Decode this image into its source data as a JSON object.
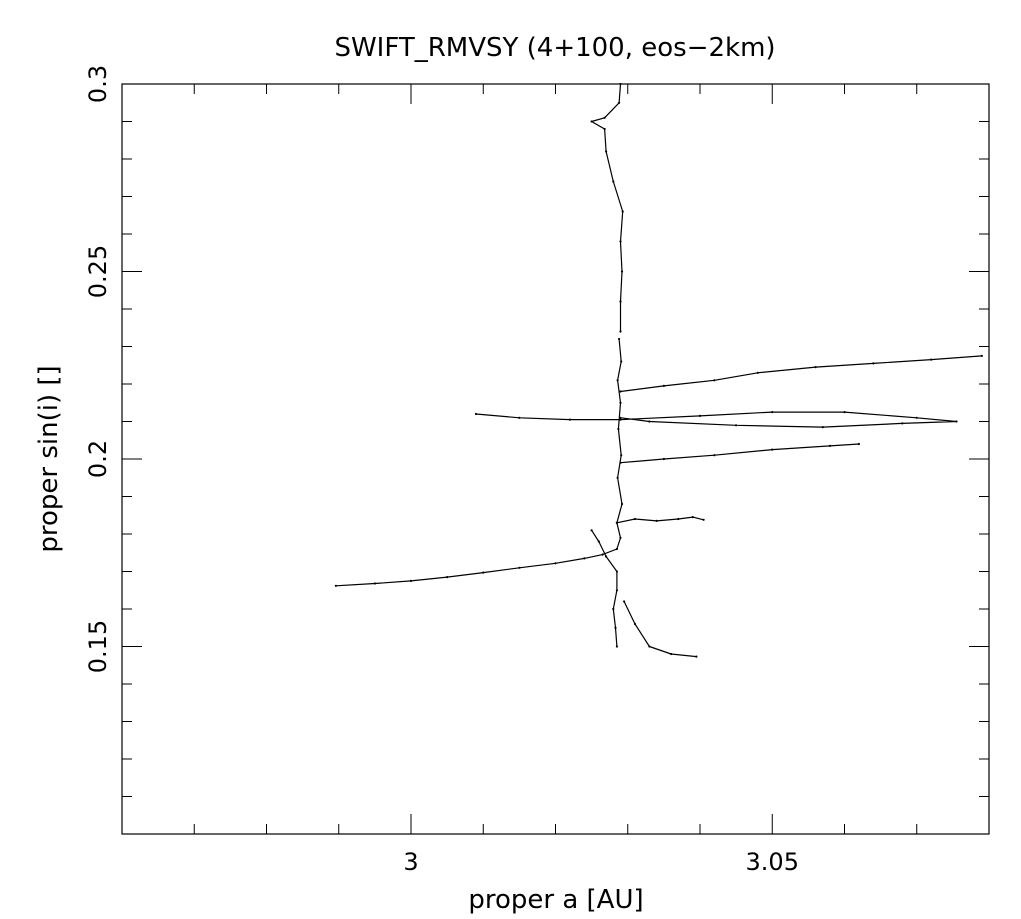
{
  "chart_data": {
    "type": "scatter",
    "title": "SWIFT_RMVSY (4+100, eos−2km)",
    "xlabel": "proper a [AU]",
    "ylabel": "proper sin(i) []",
    "xlim": [
      2.96,
      3.08
    ],
    "ylim": [
      0.1,
      0.3
    ],
    "xticks_major": [
      3,
      3.05
    ],
    "xtick_labels": [
      "3",
      "3.05"
    ],
    "yticks_major": [
      0.15,
      0.2,
      0.25,
      0.3
    ],
    "ytick_labels": [
      "0.15",
      "0.2",
      "0.25",
      "0.3"
    ],
    "grid": false,
    "line_color": "#000000",
    "series": [
      {
        "values": [
          [
            2.9896,
            0.1662
          ],
          [
            2.995,
            0.1668
          ],
          [
            3.0,
            0.1675
          ],
          [
            3.005,
            0.1685
          ],
          [
            3.01,
            0.1697
          ],
          [
            3.015,
            0.171
          ],
          [
            3.02,
            0.1722
          ],
          [
            3.024,
            0.1735
          ],
          [
            3.0265,
            0.1745
          ],
          [
            3.0285,
            0.176
          ],
          [
            3.029,
            0.179
          ],
          [
            3.0285,
            0.183
          ],
          [
            3.0292,
            0.188
          ],
          [
            3.0286,
            0.195
          ],
          [
            3.0291,
            0.201
          ],
          [
            3.0287,
            0.208
          ],
          [
            3.029,
            0.215
          ],
          [
            3.0286,
            0.221
          ],
          [
            3.0291,
            0.226
          ],
          [
            3.0288,
            0.232
          ]
        ]
      },
      {
        "values": [
          [
            3.0285,
            0.183
          ],
          [
            3.031,
            0.184
          ],
          [
            3.034,
            0.1835
          ],
          [
            3.037,
            0.184
          ],
          [
            3.039,
            0.1845
          ],
          [
            3.0405,
            0.1838
          ]
        ]
      },
      {
        "values": [
          [
            3.025,
            0.181
          ],
          [
            3.026,
            0.178
          ],
          [
            3.027,
            0.174
          ],
          [
            3.0285,
            0.17
          ],
          [
            3.0285,
            0.165
          ],
          [
            3.028,
            0.16
          ],
          [
            3.0283,
            0.155
          ],
          [
            3.0285,
            0.15
          ]
        ]
      },
      {
        "values": [
          [
            3.0295,
            0.162
          ],
          [
            3.031,
            0.156
          ],
          [
            3.033,
            0.15
          ],
          [
            3.036,
            0.148
          ],
          [
            3.0395,
            0.1473
          ]
        ]
      },
      {
        "values": [
          [
            3.029,
            0.234
          ],
          [
            3.029,
            0.242
          ],
          [
            3.0292,
            0.25
          ],
          [
            3.029,
            0.258
          ],
          [
            3.0293,
            0.266
          ],
          [
            3.028,
            0.274
          ],
          [
            3.027,
            0.282
          ],
          [
            3.0268,
            0.288
          ],
          [
            3.025,
            0.29
          ],
          [
            3.0268,
            0.291
          ],
          [
            3.0288,
            0.295
          ],
          [
            3.029,
            0.3
          ]
        ]
      },
      {
        "values": [
          [
            3.029,
            0.218
          ],
          [
            3.035,
            0.2195
          ],
          [
            3.042,
            0.221
          ],
          [
            3.048,
            0.223
          ],
          [
            3.056,
            0.2245
          ],
          [
            3.064,
            0.2255
          ],
          [
            3.072,
            0.2265
          ],
          [
            3.079,
            0.2275
          ]
        ]
      },
      {
        "values": [
          [
            3.009,
            0.212
          ],
          [
            3.015,
            0.211
          ],
          [
            3.022,
            0.2105
          ],
          [
            3.029,
            0.2105
          ],
          [
            3.04,
            0.2115
          ],
          [
            3.05,
            0.2125
          ],
          [
            3.06,
            0.2125
          ],
          [
            3.07,
            0.211
          ],
          [
            3.0755,
            0.21
          ],
          [
            3.068,
            0.2095
          ],
          [
            3.057,
            0.2085
          ],
          [
            3.045,
            0.209
          ],
          [
            3.033,
            0.21
          ],
          [
            3.029,
            0.211
          ]
        ]
      },
      {
        "values": [
          [
            3.029,
            0.199
          ],
          [
            3.035,
            0.2
          ],
          [
            3.042,
            0.201
          ],
          [
            3.05,
            0.2025
          ],
          [
            3.058,
            0.2035
          ],
          [
            3.062,
            0.204
          ]
        ]
      }
    ]
  }
}
